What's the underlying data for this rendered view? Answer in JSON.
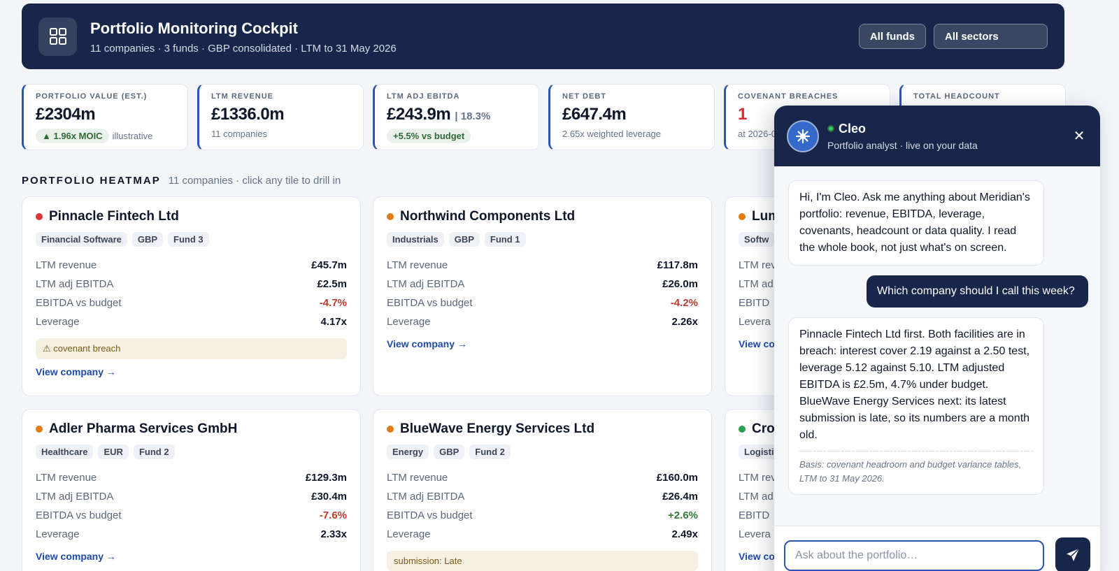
{
  "header": {
    "title": "Portfolio Monitoring Cockpit",
    "subtitle": "11 companies · 3 funds · GBP consolidated · LTM to 31 May 2026",
    "icon": "grid-icon",
    "filters": {
      "funds": "All funds",
      "sectors": "All sectors"
    }
  },
  "kpis": [
    {
      "label": "PORTFOLIO VALUE (EST.)",
      "value": "£2304m",
      "pill": "▲ 1.96x MOIC",
      "sub": "illustrative"
    },
    {
      "label": "LTM REVENUE",
      "value": "£1336.0m",
      "sub": "11 companies"
    },
    {
      "label": "LTM ADJ EBITDA",
      "value": "£243.9m",
      "value_ext": "| 18.3%",
      "pill": "+5.5% vs budget"
    },
    {
      "label": "NET DEBT",
      "value": "£647.4m",
      "sub": "2.65x weighted leverage"
    },
    {
      "label": "COVENANT BREACHES",
      "value": "1",
      "sub": "at 2026-0"
    },
    {
      "label": "TOTAL HEADCOUNT"
    }
  ],
  "heatmap": {
    "title": "PORTFOLIO HEATMAP",
    "subtitle": "11 companies · click any tile to drill in",
    "row_labels": [
      "LTM revenue",
      "LTM adj EBITDA",
      "EBITDA vs budget",
      "Leverage"
    ],
    "link_label": "View company →",
    "cards": [
      {
        "name": "Pinnacle Fintech Ltd",
        "status_color": "#d93636",
        "tags": [
          "Financial Software",
          "GBP",
          "Fund 3"
        ],
        "revenue": "£45.7m",
        "ebitda": "£2.5m",
        "vs_budget": "-4.7%",
        "leverage": "4.17x",
        "alert": "⚠ covenant breach"
      },
      {
        "name": "Northwind Components Ltd",
        "status_color": "#e07b12",
        "tags": [
          "Industrials",
          "GBP",
          "Fund 1"
        ],
        "revenue": "£117.8m",
        "ebitda": "£26.0m",
        "vs_budget": "-4.2%",
        "leverage": "2.26x"
      },
      {
        "name": "Lum",
        "status_color": "#e07b12",
        "tags": [
          "Softw"
        ],
        "partial_labels": [
          "LTM rev",
          "LTM ad",
          "EBITD",
          "Levera"
        ],
        "link": "View co"
      },
      {
        "name": "Adler Pharma Services GmbH",
        "status_color": "#e07b12",
        "tags": [
          "Healthcare",
          "EUR",
          "Fund 2"
        ],
        "revenue": "£129.3m",
        "ebitda": "£30.4m",
        "vs_budget": "-7.6%",
        "leverage": "2.33x"
      },
      {
        "name": "BlueWave Energy Services Ltd",
        "status_color": "#e07b12",
        "tags": [
          "Energy",
          "GBP",
          "Fund 2"
        ],
        "revenue": "£160.0m",
        "ebitda": "£26.4m",
        "vs_budget": "+2.6%",
        "leverage": "2.49x",
        "alert": "submission: Late"
      },
      {
        "name": "Cro",
        "status_color": "#2e9e4f",
        "tags": [
          "Logisti"
        ],
        "partial_labels": [
          "LTM rev",
          "LTM ad",
          "EBITD",
          "Levera"
        ],
        "link": "View co"
      }
    ]
  },
  "chat": {
    "name": "Cleo",
    "role": "Portfolio analyst · live on your data",
    "close": "✕",
    "messages": [
      {
        "from": "bot",
        "text": "Hi, I'm Cleo. Ask me anything about Meridian's portfolio: revenue, EBITDA, leverage, covenants, headcount or data quality. I read the whole book, not just what's on screen."
      },
      {
        "from": "user",
        "text": "Which company should I call this week?"
      },
      {
        "from": "bot",
        "text": "Pinnacle Fintech Ltd first. Both facilities are in breach: interest cover 2.19 against a 2.50 test, leverage 5.12 against 5.10. LTM adjusted EBITDA is £2.5m, 4.7% under budget. BlueWave Energy Services next: its latest submission is late, so its numbers are a month old.",
        "basis": "Basis: covenant headroom and budget variance tables, LTM to 31 May 2026."
      }
    ],
    "input_placeholder": "Ask about the portfolio…",
    "send_icon": "send-icon"
  }
}
